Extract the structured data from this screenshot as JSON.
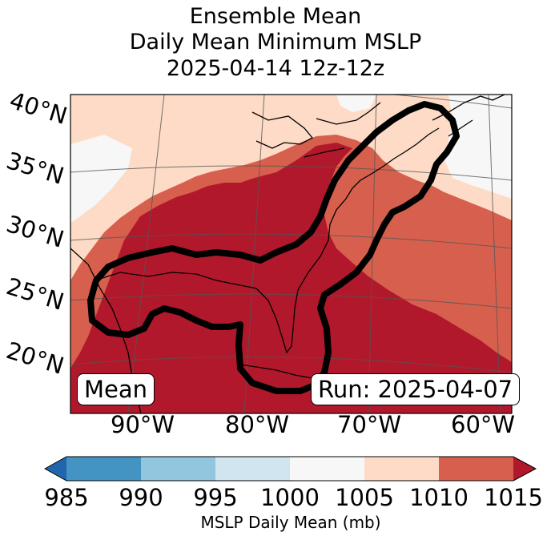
{
  "title": {
    "line1": "Ensemble Mean",
    "line2": "Daily Mean Minimum MSLP",
    "line3": "2025-04-14 12z-12z"
  },
  "map": {
    "lat_labels": [
      "40°N",
      "35°N",
      "30°N",
      "25°N",
      "20°N"
    ],
    "lon_labels": [
      "90°W",
      "80°W",
      "70°W",
      "60°W"
    ],
    "left_box": "Mean",
    "right_box": "Run: 2025-04-07",
    "colors": {
      "lt1005": "#f7f7f7",
      "c1005_1010": "#fddbc7",
      "c1010_1015": "#d6604d",
      "gt1015": "#b2182b"
    }
  },
  "colorbar": {
    "label": "MSLP Daily Mean (mb)",
    "ticks": [
      "985",
      "990",
      "995",
      "1000",
      "1005",
      "1010",
      "1015"
    ],
    "colors": [
      "#2166ac",
      "#4393c3",
      "#92c5de",
      "#d1e5f0",
      "#f7f7f7",
      "#fddbc7",
      "#d6604d",
      "#b2182b"
    ]
  }
}
